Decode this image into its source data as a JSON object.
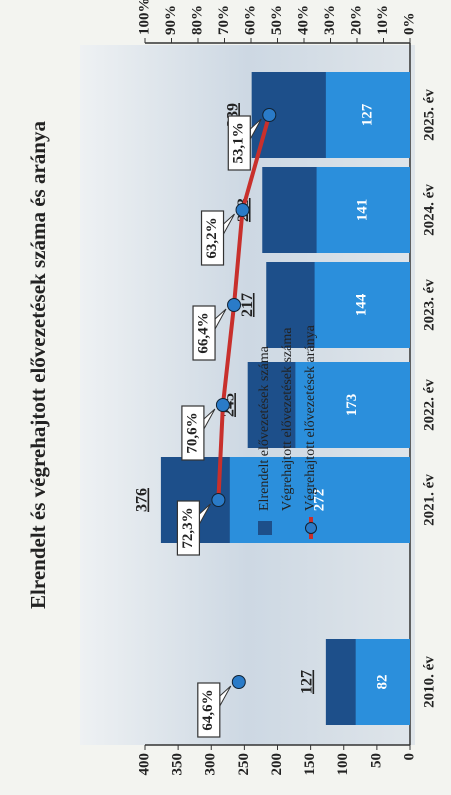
{
  "chart_data": {
    "type": "bar",
    "title": "Elrendelt és végrehajtott elővezetések száma és aránya",
    "categories": [
      "2010. év",
      "2021. év",
      "2022. év",
      "2023. év",
      "2024. év",
      "2025. év"
    ],
    "series": [
      {
        "name": "Elrendelt elővezetések száma",
        "color": "#1d4f8a",
        "values": [
          127,
          376,
          245,
          217,
          223,
          239
        ]
      },
      {
        "name": "Végrehajtott elővezetések száma",
        "color": "#2b8fdc",
        "values": [
          82,
          272,
          173,
          144,
          141,
          127
        ]
      },
      {
        "name": "Végrehajtott elővezetések aránya",
        "type": "line",
        "axis": "y2",
        "color": "#c8302c",
        "marker_color": "#2a7bc8",
        "values": [
          64.6,
          72.3,
          70.6,
          66.4,
          63.2,
          53.1
        ],
        "value_labels": [
          "64,6%",
          "72,3%",
          "70,6%",
          "66,4%",
          "63,2%",
          "53,1%"
        ]
      }
    ],
    "ylim": [
      0,
      400
    ],
    "yticks": [
      0,
      50,
      100,
      150,
      200,
      250,
      300,
      350,
      400
    ],
    "y2lim": [
      0,
      100
    ],
    "y2ticks": [
      {
        "value": 0,
        "label": "0%"
      },
      {
        "value": 10,
        "label": "10%"
      },
      {
        "value": 20,
        "label": "20%"
      },
      {
        "value": 30,
        "label": "30%"
      },
      {
        "value": 40,
        "label": "40%"
      },
      {
        "value": 50,
        "label": "50%"
      },
      {
        "value": 60,
        "label": "60%"
      },
      {
        "value": 70,
        "label": "70%"
      },
      {
        "value": 80,
        "label": "80%"
      },
      {
        "value": 90,
        "label": "90%"
      },
      {
        "value": 100,
        "label": "100%"
      }
    ]
  }
}
